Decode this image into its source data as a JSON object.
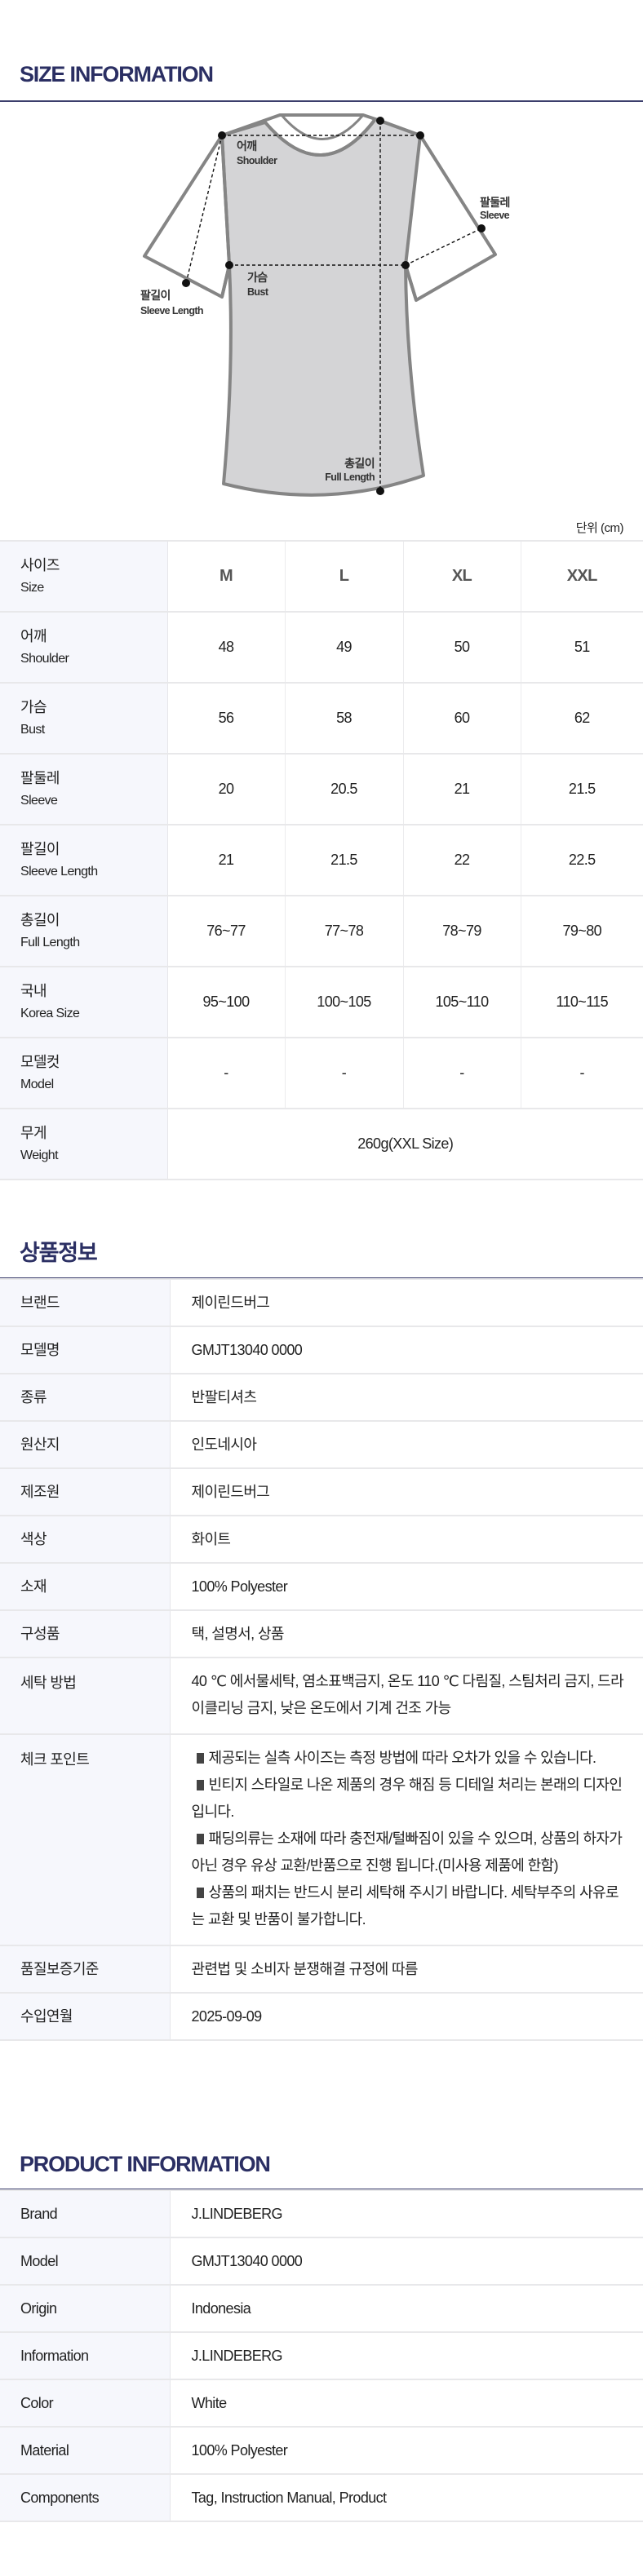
{
  "size_section": {
    "title": "SIZE INFORMATION",
    "diagram_labels": {
      "shoulder_ko": "어깨",
      "shoulder_en": "Shoulder",
      "sleeve_ko": "팔둘레",
      "sleeve_en": "Sleeve",
      "bust_ko": "가슴",
      "bust_en": "Bust",
      "sleeve_length_ko": "팔길이",
      "sleeve_length_en": "Sleeve Length",
      "full_length_ko": "총길이",
      "full_length_en": "Full Length"
    },
    "unit": "단위 (cm)",
    "header": {
      "ko": "사이즈",
      "en": "Size",
      "sizes": [
        "M",
        "L",
        "XL",
        "XXL"
      ]
    },
    "rows": [
      {
        "ko": "어깨",
        "en": "Shoulder",
        "values": [
          "48",
          "49",
          "50",
          "51"
        ]
      },
      {
        "ko": "가슴",
        "en": "Bust",
        "values": [
          "56",
          "58",
          "60",
          "62"
        ]
      },
      {
        "ko": "팔둘레",
        "en": "Sleeve",
        "values": [
          "20",
          "20.5",
          "21",
          "21.5"
        ]
      },
      {
        "ko": "팔길이",
        "en": "Sleeve Length",
        "values": [
          "21",
          "21.5",
          "22",
          "22.5"
        ]
      },
      {
        "ko": "총길이",
        "en": "Full Length",
        "values": [
          "76~77",
          "77~78",
          "78~79",
          "79~80"
        ]
      },
      {
        "ko": "국내",
        "en": "Korea Size",
        "values": [
          "95~100",
          "100~105",
          "105~110",
          "110~115"
        ]
      },
      {
        "ko": "모델컷",
        "en": "Model",
        "values": [
          "-",
          "-",
          "-",
          "-"
        ]
      }
    ],
    "weight": {
      "ko": "무게",
      "en": "Weight",
      "value": "260g(XXL Size)"
    }
  },
  "info_ko": {
    "title": "상품정보",
    "rows": [
      {
        "label": "브랜드",
        "value": "제이린드버그"
      },
      {
        "label": "모델명",
        "value": "GMJT13040 0000"
      },
      {
        "label": "종류",
        "value": "반팔티셔츠"
      },
      {
        "label": "원산지",
        "value": "인도네시아"
      },
      {
        "label": "제조원",
        "value": "제이린드버그"
      },
      {
        "label": "색상",
        "value": "화이트"
      },
      {
        "label": "소재",
        "value": "100% Polyester"
      },
      {
        "label": "구성품",
        "value": "택, 설명서, 상품"
      },
      {
        "label": "세탁 방법",
        "value": "40 ℃ 에서물세탁, 염소표백금지, 온도 110 ℃ 다림질, 스팀처리 금지, 드라이클리닝 금지, 낮은 온도에서 기계 건조 가능"
      },
      {
        "label": "체크 포인트",
        "bullets": [
          "제공되는 실측 사이즈는 측정 방법에 따라 오차가 있을 수 있습니다.",
          "빈티지 스타일로 나온 제품의 경우 해짐 등 디테일 처리는 본래의 디자인입니다.",
          "패딩의류는 소재에 따라 충전재/털빠짐이 있을 수 있으며, 상품의 하자가 아닌 경우 유상 교환/반품으로 진행 됩니다.(미사용 제품에 한함)",
          "상품의 패치는 반드시 분리 세탁해 주시기 바랍니다. 세탁부주의 사유로는 교환 및 반품이 불가합니다."
        ]
      },
      {
        "label": "품질보증기준",
        "value": "관련법 및 소비자 분쟁해결 규정에 따름"
      },
      {
        "label": "수입연월",
        "value": "2025-09-09"
      }
    ]
  },
  "info_en": {
    "title": "PRODUCT INFORMATION",
    "rows": [
      {
        "label": "Brand",
        "value": "J.LINDEBERG"
      },
      {
        "label": "Model",
        "value": "GMJT13040 0000"
      },
      {
        "label": "Origin",
        "value": "Indonesia"
      },
      {
        "label": "Information",
        "value": "J.LINDEBERG"
      },
      {
        "label": "Color",
        "value": "White"
      },
      {
        "label": "Material",
        "value": "100% Polyester"
      },
      {
        "label": "Components",
        "value": "Tag, Instruction Manual, Product"
      }
    ]
  },
  "colors": {
    "accent": "#2b2f63",
    "label_bg": "#f6f7fc",
    "shirt_fill": "#d4d4d6",
    "shirt_stroke": "#858585"
  }
}
